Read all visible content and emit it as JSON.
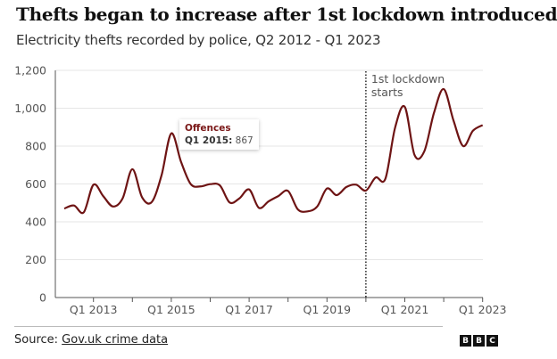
{
  "header": {
    "title": "Thefts began to increase after 1st lockdown introduced",
    "subtitle": "Electricity thefts recorded by police, Q2 2012 - Q1 2023"
  },
  "footer": {
    "source_prefix": "Source: ",
    "source_link": "Gov.uk crime data",
    "logo": [
      "B",
      "B",
      "C"
    ]
  },
  "tooltip": {
    "series": "Offences",
    "label": "Q1 2015:",
    "value": "867"
  },
  "chart_data": {
    "type": "line",
    "title": "Thefts began to increase after 1st lockdown introduced",
    "subtitle": "Electricity thefts recorded by police, Q2 2012 - Q1 2023",
    "line_color": "#6e1414",
    "ylim": [
      0,
      1200
    ],
    "yticks": [
      0,
      200,
      400,
      600,
      800,
      1000,
      1200
    ],
    "ytick_labels": [
      "0",
      "200",
      "400",
      "600",
      "800",
      "1,000",
      "1,200"
    ],
    "xtick_labels": [
      "Q1 2013",
      "Q1 2015",
      "Q1 2017",
      "Q1 2019",
      "Q1 2021",
      "Q1 2023"
    ],
    "grid": "horizontal",
    "annotation": {
      "x": "Q1 2020",
      "text_line1": "1st lockdown",
      "text_line2": "starts",
      "style": "dotted"
    },
    "series": [
      {
        "name": "Offences",
        "x": [
          "Q2 2012",
          "Q3 2012",
          "Q4 2012",
          "Q1 2013",
          "Q2 2013",
          "Q3 2013",
          "Q4 2013",
          "Q1 2014",
          "Q2 2014",
          "Q3 2014",
          "Q4 2014",
          "Q1 2015",
          "Q2 2015",
          "Q3 2015",
          "Q4 2015",
          "Q1 2016",
          "Q2 2016",
          "Q3 2016",
          "Q4 2016",
          "Q1 2017",
          "Q2 2017",
          "Q3 2017",
          "Q4 2017",
          "Q1 2018",
          "Q2 2018",
          "Q3 2018",
          "Q4 2018",
          "Q1 2019",
          "Q2 2019",
          "Q3 2019",
          "Q4 2019",
          "Q1 2020",
          "Q2 2020",
          "Q3 2020",
          "Q4 2020",
          "Q1 2021",
          "Q2 2021",
          "Q3 2021",
          "Q4 2021",
          "Q1 2022",
          "Q2 2022",
          "Q3 2022",
          "Q4 2022",
          "Q1 2023"
        ],
        "values": [
          470,
          486,
          450,
          596,
          536,
          481,
          524,
          678,
          529,
          505,
          646,
          867,
          717,
          599,
          587,
          599,
          592,
          502,
          524,
          571,
          474,
          508,
          536,
          563,
          466,
          455,
          481,
          576,
          541,
          584,
          596,
          565,
          634,
          627,
          897,
          1007,
          753,
          772,
          976,
          1101,
          936,
          800,
          881,
          911
        ]
      }
    ]
  }
}
